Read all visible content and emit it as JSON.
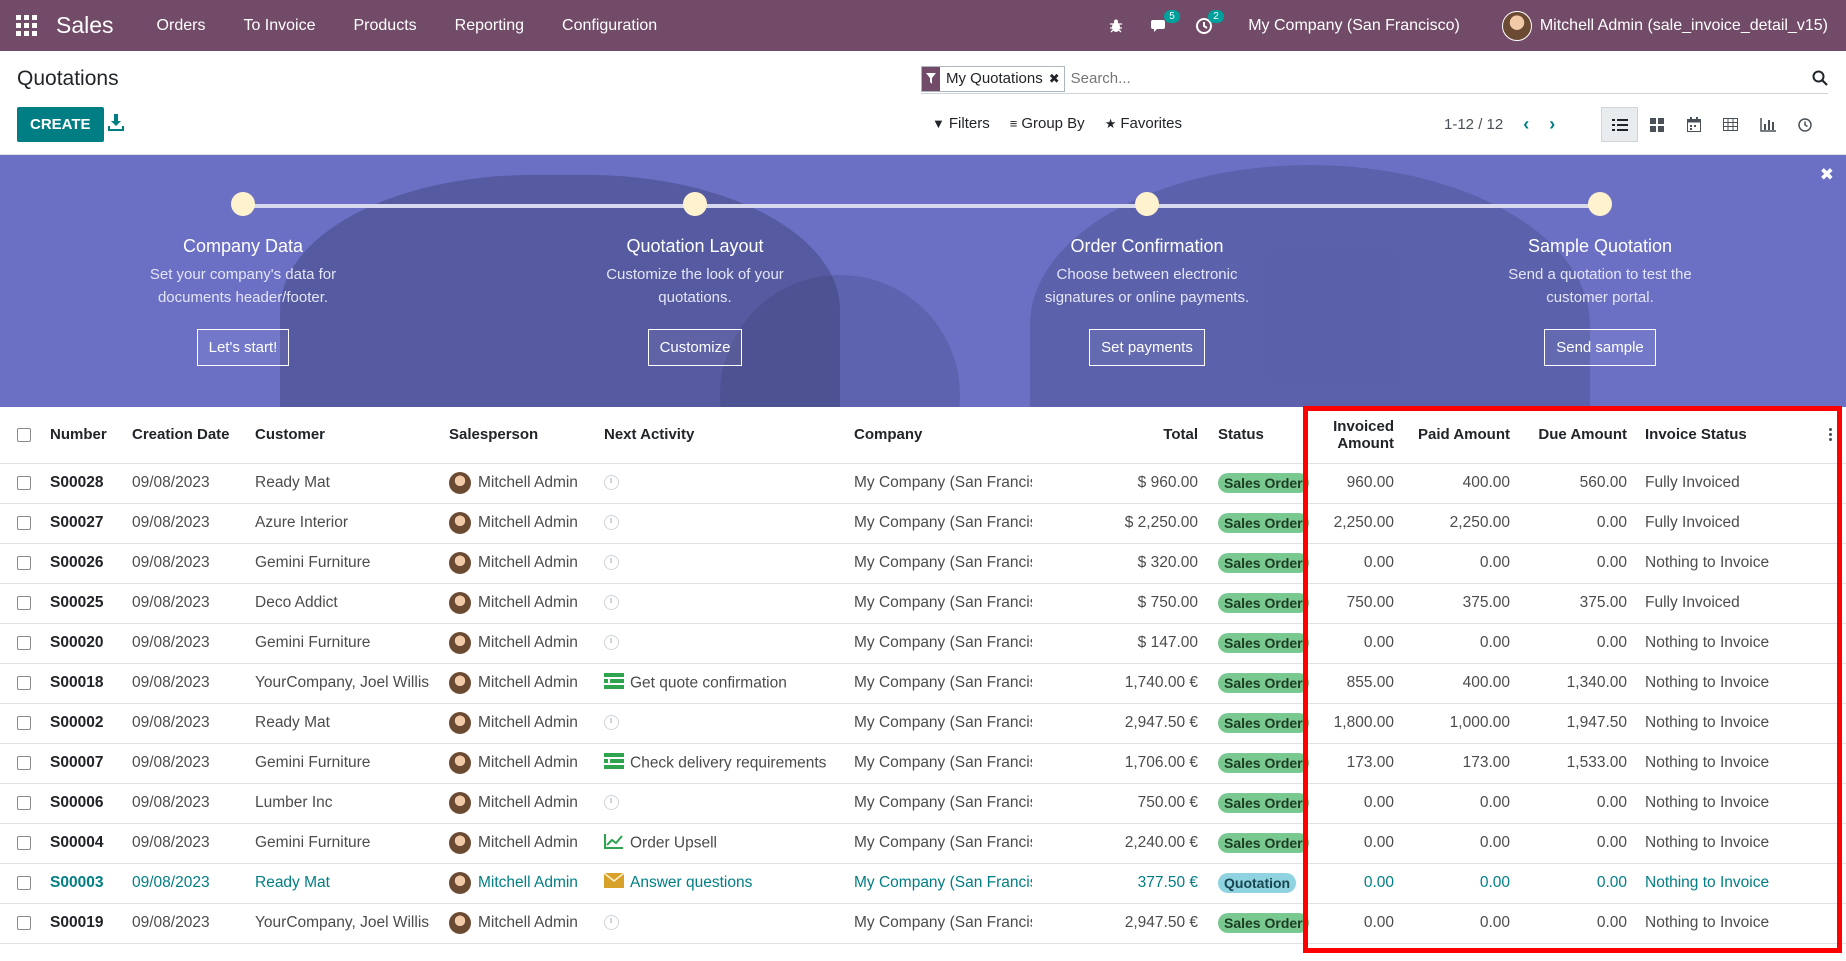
{
  "navbar": {
    "app_name": "Sales",
    "menu": [
      "Orders",
      "To Invoice",
      "Products",
      "Reporting",
      "Configuration"
    ],
    "messages_count": "5",
    "activities_count": "2",
    "company": "My Company (San Francisco)",
    "user": "Mitchell Admin (sale_invoice_detail_v15)",
    "bar_color": "#714b67"
  },
  "control_panel": {
    "title": "Quotations",
    "create_label": "CREATE",
    "facet_label": "My Quotations",
    "search_placeholder": "Search...",
    "filters_label": "Filters",
    "groupby_label": "Group By",
    "favorites_label": "Favorites",
    "pager": "1-12 / 12",
    "views": [
      "list-view-icon",
      "kanban-view-icon",
      "calendar-view-icon",
      "pivot-view-icon",
      "graph-view-icon",
      "activity-view-icon"
    ]
  },
  "onboarding": {
    "steps": [
      {
        "title": "Company Data",
        "desc1": "Set your company's data for",
        "desc2": "documents header/footer.",
        "button": "Let's start!"
      },
      {
        "title": "Quotation Layout",
        "desc1": "Customize the look of your",
        "desc2": "quotations.",
        "button": "Customize"
      },
      {
        "title": "Order Confirmation",
        "desc1": "Choose between electronic",
        "desc2": "signatures or online payments.",
        "button": "Set payments"
      },
      {
        "title": "Sample Quotation",
        "desc1": "Send a quotation to test the",
        "desc2": "customer portal.",
        "button": "Send sample"
      }
    ],
    "banner_color": "#6b70c5"
  },
  "table": {
    "headers": {
      "number": "Number",
      "creation_date": "Creation Date",
      "customer": "Customer",
      "salesperson": "Salesperson",
      "next_activity": "Next Activity",
      "company": "Company",
      "total": "Total",
      "status": "Status",
      "invoiced_amount": "Invoiced Amount",
      "paid_amount": "Paid Amount",
      "due_amount": "Due Amount",
      "invoice_status": "Invoice Status"
    },
    "rows": [
      {
        "number": "S00028",
        "date": "09/08/2023",
        "customer": "Ready Mat",
        "salesperson": "Mitchell Admin",
        "activity": "",
        "activity_icon": "clock-icon",
        "company": "My Company (San Francisco)",
        "total": "$ 960.00",
        "status": "Sales Order",
        "invoiced": "960.00",
        "paid": "400.00",
        "due": "560.00",
        "invoice_status": "Fully Invoiced"
      },
      {
        "number": "S00027",
        "date": "09/08/2023",
        "customer": "Azure Interior",
        "salesperson": "Mitchell Admin",
        "activity": "",
        "activity_icon": "clock-icon",
        "company": "My Company (San Francisco)",
        "total": "$ 2,250.00",
        "status": "Sales Order",
        "invoiced": "2,250.00",
        "paid": "2,250.00",
        "due": "0.00",
        "invoice_status": "Fully Invoiced"
      },
      {
        "number": "S00026",
        "date": "09/08/2023",
        "customer": "Gemini Furniture",
        "salesperson": "Mitchell Admin",
        "activity": "",
        "activity_icon": "clock-icon",
        "company": "My Company (San Francisco)",
        "total": "$ 320.00",
        "status": "Sales Order",
        "invoiced": "0.00",
        "paid": "0.00",
        "due": "0.00",
        "invoice_status": "Nothing to Invoice"
      },
      {
        "number": "S00025",
        "date": "09/08/2023",
        "customer": "Deco Addict",
        "salesperson": "Mitchell Admin",
        "activity": "",
        "activity_icon": "clock-icon",
        "company": "My Company (San Francisco)",
        "total": "$ 750.00",
        "status": "Sales Order",
        "invoiced": "750.00",
        "paid": "375.00",
        "due": "375.00",
        "invoice_status": "Fully Invoiced"
      },
      {
        "number": "S00020",
        "date": "09/08/2023",
        "customer": "Gemini Furniture",
        "salesperson": "Mitchell Admin",
        "activity": "",
        "activity_icon": "clock-icon",
        "company": "My Company (San Francisco)",
        "total": "$ 147.00",
        "status": "Sales Order",
        "invoiced": "0.00",
        "paid": "0.00",
        "due": "0.00",
        "invoice_status": "Nothing to Invoice"
      },
      {
        "number": "S00018",
        "date": "09/08/2023",
        "customer": "YourCompany, Joel Willis",
        "salesperson": "Mitchell Admin",
        "activity": "Get quote confirmation",
        "activity_icon": "todo-list-icon",
        "company": "My Company (San Francisco)",
        "total": "1,740.00 €",
        "status": "Sales Order",
        "invoiced": "855.00",
        "paid": "400.00",
        "due": "1,340.00",
        "invoice_status": "Nothing to Invoice"
      },
      {
        "number": "S00002",
        "date": "09/08/2023",
        "customer": "Ready Mat",
        "salesperson": "Mitchell Admin",
        "activity": "",
        "activity_icon": "clock-icon",
        "company": "My Company (San Francisco)",
        "total": "2,947.50 €",
        "status": "Sales Order",
        "invoiced": "1,800.00",
        "paid": "1,000.00",
        "due": "1,947.50",
        "invoice_status": "Nothing to Invoice"
      },
      {
        "number": "S00007",
        "date": "09/08/2023",
        "customer": "Gemini Furniture",
        "salesperson": "Mitchell Admin",
        "activity": "Check delivery requirements",
        "activity_icon": "todo-list-icon",
        "company": "My Company (San Francisco)",
        "total": "1,706.00 €",
        "status": "Sales Order",
        "invoiced": "173.00",
        "paid": "173.00",
        "due": "1,533.00",
        "invoice_status": "Nothing to Invoice"
      },
      {
        "number": "S00006",
        "date": "09/08/2023",
        "customer": "Lumber Inc",
        "salesperson": "Mitchell Admin",
        "activity": "",
        "activity_icon": "clock-icon",
        "company": "My Company (San Francisco)",
        "total": "750.00 €",
        "status": "Sales Order",
        "invoiced": "0.00",
        "paid": "0.00",
        "due": "0.00",
        "invoice_status": "Nothing to Invoice"
      },
      {
        "number": "S00004",
        "date": "09/08/2023",
        "customer": "Gemini Furniture",
        "salesperson": "Mitchell Admin",
        "activity": "Order Upsell",
        "activity_icon": "chart-line-icon",
        "company": "My Company (San Francisco)",
        "total": "2,240.00 €",
        "status": "Sales Order",
        "invoiced": "0.00",
        "paid": "0.00",
        "due": "0.00",
        "invoice_status": "Nothing to Invoice"
      },
      {
        "number": "S00003",
        "date": "09/08/2023",
        "customer": "Ready Mat",
        "salesperson": "Mitchell Admin",
        "activity": "Answer questions",
        "activity_icon": "envelope-icon",
        "company": "My Company (San Francisco)",
        "total": "377.50 €",
        "status": "Quotation",
        "invoiced": "0.00",
        "paid": "0.00",
        "due": "0.00",
        "invoice_status": "Nothing to Invoice",
        "highlighted": true
      },
      {
        "number": "S00019",
        "date": "09/08/2023",
        "customer": "YourCompany, Joel Willis",
        "salesperson": "Mitchell Admin",
        "activity": "",
        "activity_icon": "clock-icon",
        "company": "My Company (San Francisco)",
        "total": "2,947.50 €",
        "status": "Sales Order",
        "invoiced": "0.00",
        "paid": "0.00",
        "due": "0.00",
        "invoice_status": "Nothing to Invoice"
      }
    ]
  },
  "colors": {
    "primary": "#017e84",
    "sales_order_badge": "#78c88f",
    "quotation_badge": "#8fd3e0",
    "annotation_box": "#ff0000"
  }
}
